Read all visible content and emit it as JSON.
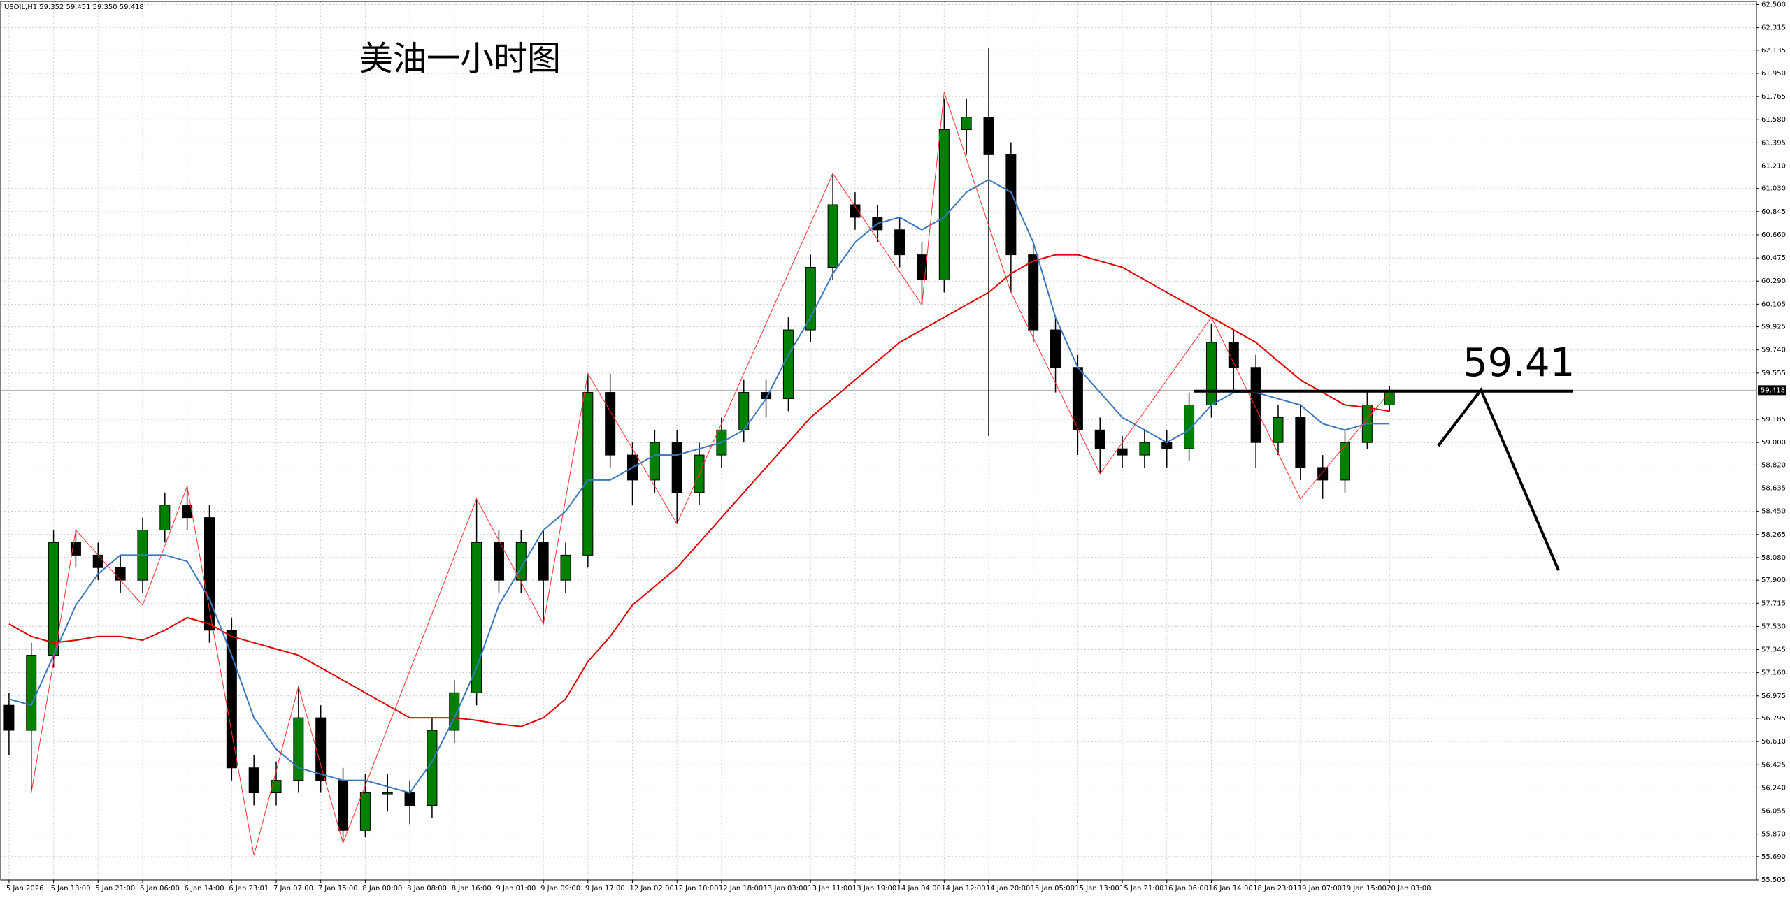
{
  "chart_data": {
    "type": "candlestick",
    "header": "USOIL,H1  59.352 59.451 59.350 59.418",
    "title": "美油一小时图",
    "categories": [
      "5 Jan 2026",
      null,
      "5 Jan 13:00",
      null,
      "5 Jan 21:00",
      null,
      "6 Jan 06:00",
      null,
      "6 Jan 14:00",
      null,
      "6 Jan 23:01",
      null,
      "7 Jan 07:00",
      null,
      "7 Jan 15:00",
      null,
      "8 Jan 00:00",
      null,
      "8 Jan 08:00",
      null,
      "8 Jan 16:00",
      null,
      "9 Jan 01:00",
      null,
      "9 Jan 09:00",
      null,
      "9 Jan 17:00",
      null,
      "12 Jan 02:00",
      null,
      "12 Jan 10:00",
      null,
      "12 Jan 18:00",
      null,
      "13 Jan 03:00",
      null,
      "13 Jan 11:00",
      null,
      "13 Jan 19:00",
      null,
      "14 Jan 04:00",
      null,
      "14 Jan 12:00",
      null,
      "14 Jan 20:00",
      null,
      "15 Jan 05:00",
      null,
      "15 Jan 13:00",
      null,
      "15 Jan 21:00",
      null,
      "16 Jan 06:00",
      null,
      "16 Jan 14:00",
      null,
      "18 Jan 23:01",
      null,
      "19 Jan 07:00",
      null,
      "19 Jan 15:00",
      null,
      "20 Jan 03:00"
    ],
    "open": [
      56.9,
      56.7,
      57.3,
      58.2,
      58.1,
      58.0,
      57.9,
      58.3,
      58.5,
      58.4,
      57.5,
      56.4,
      56.2,
      56.3,
      56.8,
      56.3,
      55.9,
      56.2,
      56.2,
      56.1,
      56.7,
      57.0,
      58.2,
      57.9,
      58.2,
      57.9,
      58.1,
      59.4,
      58.9,
      58.7,
      59.0,
      58.6,
      58.9,
      59.1,
      59.4,
      59.35,
      59.9,
      60.4,
      60.9,
      60.8,
      60.7,
      60.5,
      60.3,
      61.5,
      61.6,
      61.3,
      60.5,
      59.9,
      59.6,
      59.1,
      58.95,
      58.9,
      59.0,
      58.95,
      59.3,
      59.8,
      59.6,
      59.0,
      59.2,
      58.8,
      58.7,
      59.0,
      59.3
    ],
    "high": [
      57.0,
      57.4,
      58.3,
      58.3,
      58.2,
      58.1,
      58.4,
      58.6,
      58.65,
      58.5,
      57.6,
      56.5,
      56.45,
      57.05,
      56.9,
      56.4,
      56.35,
      56.35,
      56.3,
      56.8,
      57.1,
      58.55,
      58.3,
      58.3,
      58.3,
      58.2,
      59.55,
      59.55,
      59.0,
      59.1,
      59.1,
      59.0,
      59.2,
      59.5,
      59.5,
      60.0,
      60.5,
      61.15,
      61.0,
      60.9,
      60.8,
      60.6,
      61.75,
      61.75,
      62.15,
      61.4,
      60.6,
      60.0,
      59.7,
      59.2,
      59.05,
      59.1,
      59.1,
      59.4,
      59.95,
      59.9,
      59.7,
      59.3,
      59.3,
      58.9,
      59.1,
      59.4,
      59.451
    ],
    "low": [
      56.5,
      56.2,
      57.2,
      58.0,
      57.9,
      57.8,
      57.8,
      58.2,
      58.3,
      57.4,
      56.3,
      56.1,
      56.1,
      56.2,
      56.2,
      55.8,
      55.85,
      56.05,
      55.95,
      56.0,
      56.6,
      56.9,
      57.8,
      57.8,
      57.55,
      57.8,
      58.0,
      58.8,
      58.5,
      58.6,
      58.35,
      58.5,
      58.8,
      59.0,
      59.2,
      59.25,
      59.8,
      60.3,
      60.7,
      60.6,
      60.4,
      60.1,
      60.2,
      61.3,
      59.05,
      60.2,
      59.8,
      59.4,
      58.9,
      58.75,
      58.8,
      58.8,
      58.8,
      58.85,
      59.2,
      59.4,
      58.8,
      58.9,
      58.7,
      58.55,
      58.6,
      58.95,
      59.25
    ],
    "close": [
      56.7,
      57.3,
      58.2,
      58.1,
      58.0,
      57.9,
      58.3,
      58.5,
      58.4,
      57.5,
      56.4,
      56.2,
      56.3,
      56.8,
      56.3,
      55.9,
      56.2,
      56.2,
      56.1,
      56.7,
      57.0,
      58.2,
      57.9,
      58.2,
      57.9,
      58.1,
      59.4,
      58.9,
      58.7,
      59.0,
      58.6,
      58.9,
      59.1,
      59.4,
      59.35,
      59.9,
      60.4,
      60.9,
      60.8,
      60.7,
      60.5,
      60.3,
      61.5,
      61.6,
      61.3,
      60.5,
      59.9,
      59.6,
      59.1,
      58.95,
      58.9,
      59.0,
      58.95,
      59.3,
      59.8,
      59.6,
      59.0,
      59.2,
      58.8,
      58.7,
      59.0,
      59.3,
      59.418
    ],
    "up_color": "#008000",
    "down_color": "#000000",
    "overlays": [
      {
        "color": "#e00000",
        "values": [
          57.55,
          57.45,
          57.4,
          57.42,
          57.45,
          57.45,
          57.42,
          57.5,
          57.6,
          57.55,
          57.45,
          57.4,
          57.35,
          57.3,
          57.2,
          57.1,
          57.0,
          56.9,
          56.8,
          56.8,
          56.8,
          56.78,
          56.75,
          56.73,
          56.8,
          56.95,
          57.25,
          57.45,
          57.7,
          57.85,
          58.0,
          58.2,
          58.4,
          58.6,
          58.8,
          59.0,
          59.2,
          59.35,
          59.5,
          59.65,
          59.8,
          59.9,
          60.0,
          60.1,
          60.2,
          60.35,
          60.45,
          60.5,
          60.5,
          60.45,
          60.4,
          60.3,
          60.2,
          60.1,
          60.0,
          59.9,
          59.8,
          59.65,
          59.5,
          59.4,
          59.3,
          59.28,
          59.25
        ]
      },
      {
        "color": "#3a78c0",
        "values": [
          56.95,
          56.9,
          57.3,
          57.7,
          57.95,
          58.1,
          58.1,
          58.1,
          58.05,
          57.75,
          57.3,
          56.8,
          56.55,
          56.4,
          56.35,
          56.3,
          56.3,
          56.25,
          56.2,
          56.45,
          56.8,
          57.2,
          57.7,
          58.0,
          58.3,
          58.45,
          58.7,
          58.7,
          58.8,
          58.9,
          58.9,
          58.95,
          59.0,
          59.1,
          59.35,
          59.7,
          60.0,
          60.35,
          60.6,
          60.75,
          60.8,
          60.7,
          60.8,
          61.0,
          61.1,
          61.0,
          60.6,
          60.0,
          59.6,
          59.4,
          59.2,
          59.1,
          59.0,
          59.1,
          59.3,
          59.4,
          59.4,
          59.35,
          59.3,
          59.15,
          59.1,
          59.15,
          59.15
        ]
      }
    ],
    "zigzag": {
      "color": "#ff3030",
      "x": [
        1,
        3,
        6,
        8,
        11,
        13,
        15,
        21,
        24,
        26,
        30,
        37,
        41,
        42,
        45,
        49,
        54,
        58,
        62
      ],
      "values": [
        56.2,
        58.3,
        57.7,
        58.65,
        55.7,
        57.05,
        55.8,
        58.55,
        57.55,
        59.55,
        58.35,
        61.15,
        60.1,
        61.8,
        60.2,
        58.75,
        60.0,
        58.55,
        59.4
      ]
    },
    "level": 59.41,
    "last_price": {
      "value": 59.418,
      "label": "59.418"
    },
    "ylim": [
      55.505,
      62.5
    ],
    "yticks": [
      {
        "value": 62.5,
        "label": "62.500"
      },
      {
        "value": 62.315,
        "label": "62.315"
      },
      {
        "value": 62.135,
        "label": "62.135"
      },
      {
        "value": 61.95,
        "label": "61.950"
      },
      {
        "value": 61.765,
        "label": "61.765"
      },
      {
        "value": 61.58,
        "label": "61.580"
      },
      {
        "value": 61.395,
        "label": "61.395"
      },
      {
        "value": 61.21,
        "label": "61.210"
      },
      {
        "value": 61.03,
        "label": "61.030"
      },
      {
        "value": 60.845,
        "label": "60.845"
      },
      {
        "value": 60.66,
        "label": "60.660"
      },
      {
        "value": 60.475,
        "label": "60.475"
      },
      {
        "value": 60.29,
        "label": "60.290"
      },
      {
        "value": 60.105,
        "label": "60.105"
      },
      {
        "value": 59.925,
        "label": "59.925"
      },
      {
        "value": 59.74,
        "label": "59.740"
      },
      {
        "value": 59.555,
        "label": "59.555"
      },
      {
        "value": 59.185,
        "label": "59.185"
      },
      {
        "value": 59.0,
        "label": "59.000"
      },
      {
        "value": 58.82,
        "label": "58.820"
      },
      {
        "value": 58.635,
        "label": "58.635"
      },
      {
        "value": 58.45,
        "label": "58.450"
      },
      {
        "value": 58.265,
        "label": "58.265"
      },
      {
        "value": 58.08,
        "label": "58.080"
      },
      {
        "value": 57.9,
        "label": "57.900"
      },
      {
        "value": 57.715,
        "label": "57.715"
      },
      {
        "value": 57.53,
        "label": "57.530"
      },
      {
        "value": 57.345,
        "label": "57.345"
      },
      {
        "value": 57.16,
        "label": "57.160"
      },
      {
        "value": 56.975,
        "label": "56.975"
      },
      {
        "value": 56.795,
        "label": "56.795"
      },
      {
        "value": 56.61,
        "label": "56.610"
      },
      {
        "value": 56.425,
        "label": "56.425"
      },
      {
        "value": 56.24,
        "label": "56.240"
      },
      {
        "value": 56.055,
        "label": "56.055"
      },
      {
        "value": 55.87,
        "label": "55.870"
      },
      {
        "value": 55.69,
        "label": "55.690"
      },
      {
        "value": 55.505,
        "label": "55.505"
      }
    ],
    "grid": true
  }
}
